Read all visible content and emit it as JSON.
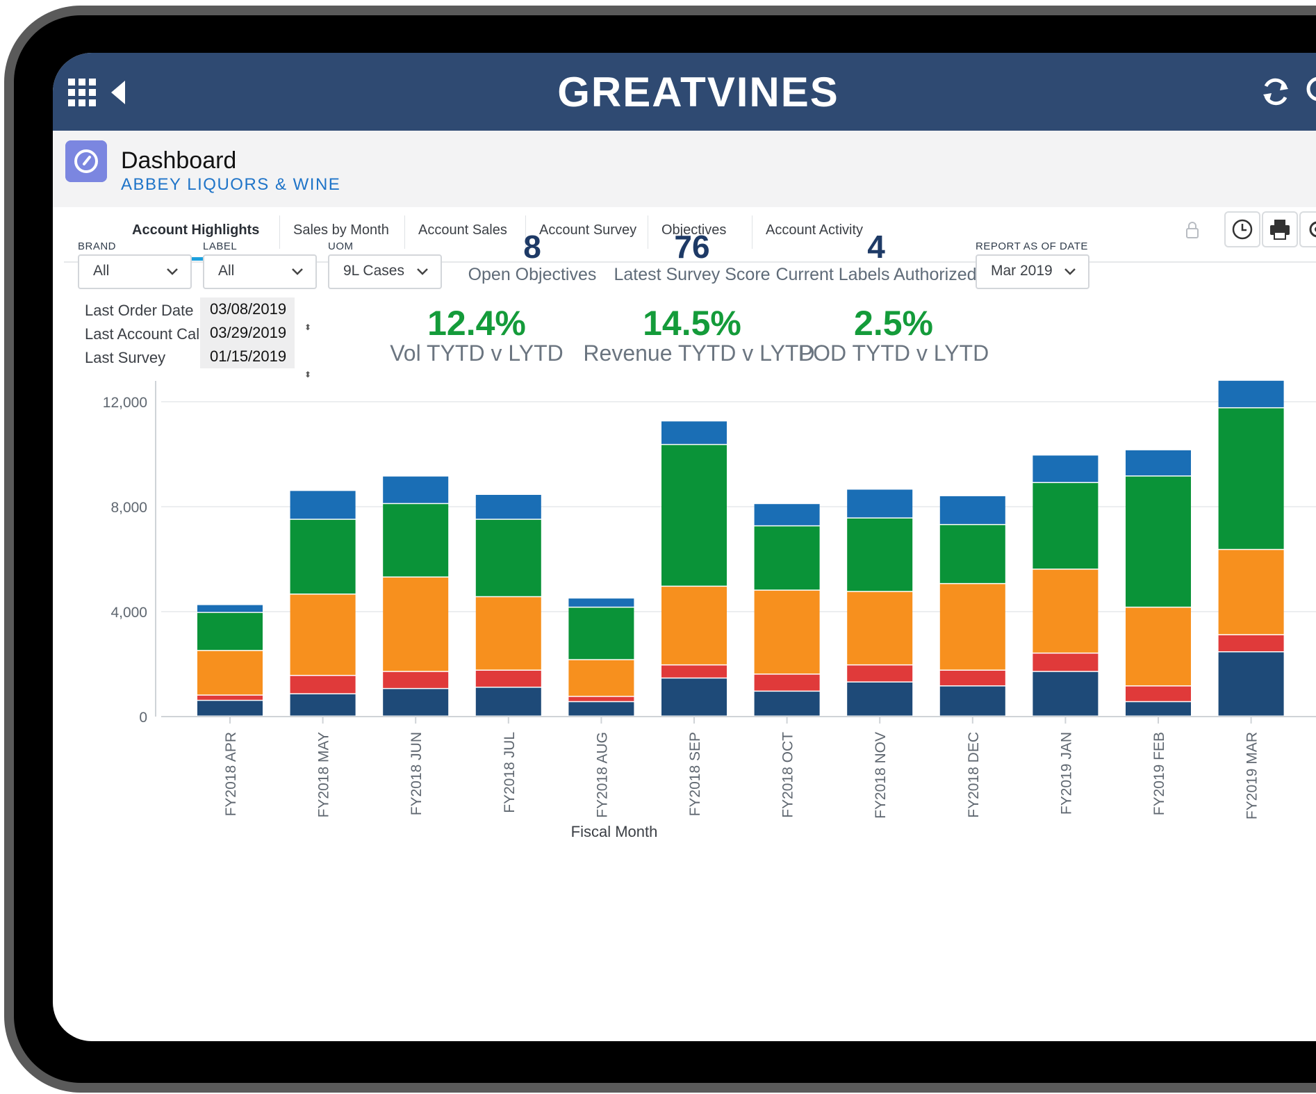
{
  "header": {
    "title": "GREATVINES"
  },
  "page": {
    "title": "Dashboard",
    "subtitle": "ABBEY LIQUORS & WINE"
  },
  "tabs": [
    "Account Highlights",
    "Sales by Month",
    "Account Sales",
    "Account Survey",
    "Objectives",
    "Account Activity"
  ],
  "filters": {
    "brand": {
      "label": "BRAND",
      "value": "All"
    },
    "label": {
      "label": "LABEL",
      "value": "All"
    },
    "uom": {
      "label": "UOM",
      "value": "9L Cases"
    },
    "report_date": {
      "label": "REPORT AS OF DATE",
      "value": "Mar 2019"
    }
  },
  "kpis": [
    {
      "value": "8",
      "label": "Open Objectives"
    },
    {
      "value": "76",
      "label": "Latest Survey Score"
    },
    {
      "value": "4",
      "label": "Current Labels Authorized"
    }
  ],
  "growth": [
    {
      "value": "12.4%",
      "label": "Vol TYTD v LYTD"
    },
    {
      "value": "14.5%",
      "label": "Revenue TYTD v LYTD"
    },
    {
      "value": "2.5%",
      "label": "POD TYTD v LYTD"
    }
  ],
  "info": [
    {
      "label": "Last Order Date",
      "value": "03/08/2019"
    },
    {
      "label": "Last Account Call",
      "value": "03/29/2019"
    },
    {
      "label": "Last Survey",
      "value": "01/15/2019"
    }
  ],
  "colors": {
    "header": "#2f4a72",
    "accent": "#1ca0dd",
    "kpi_green": "#149b3a",
    "kpi_navy": "#1e3a66"
  },
  "icons": [
    "app-grid-icon",
    "back-arrow-icon",
    "refresh-icon",
    "search-icon",
    "dashboard-gauge-icon",
    "lock-icon",
    "clock-icon",
    "print-icon",
    "gear-icon",
    "chevron-down-icon"
  ],
  "chart_data": {
    "type": "bar",
    "stacked": true,
    "xlabel": "Fiscal Month",
    "ylabel": "",
    "ylim": [
      0,
      12000
    ],
    "yticks": [
      0,
      4000,
      8000,
      12000
    ],
    "ytick_labels": [
      "0",
      "4,000",
      "8,000",
      "12,000"
    ],
    "categories": [
      "FY2018 APR",
      "FY2018 MAY",
      "FY2018 JUN",
      "FY2018 JUL",
      "FY2018 AUG",
      "FY2018 SEP",
      "FY2018 OCT",
      "FY2018 NOV",
      "FY2018 DEC",
      "FY2019 JAN",
      "FY2019 FEB",
      "FY2019 MAR"
    ],
    "grid": true,
    "series": [
      {
        "color": "#1e4a78",
        "values": [
          600,
          850,
          1050,
          1100,
          550,
          1450,
          950,
          1300,
          1150,
          1700,
          550,
          2450
        ]
      },
      {
        "color": "#e03a3a",
        "values": [
          200,
          700,
          650,
          650,
          200,
          500,
          650,
          650,
          600,
          700,
          600,
          650
        ]
      },
      {
        "color": "#f7901e",
        "values": [
          1700,
          3100,
          3600,
          2800,
          1400,
          3000,
          3200,
          2800,
          3300,
          3200,
          3000,
          3250
        ]
      },
      {
        "color": "#0a9338",
        "values": [
          1450,
          2850,
          2800,
          2950,
          2000,
          5400,
          2450,
          2800,
          2250,
          3300,
          5000,
          5400
        ]
      },
      {
        "color": "#1a6eb5",
        "values": [
          300,
          1100,
          1050,
          950,
          350,
          900,
          850,
          1100,
          1100,
          1050,
          1000,
          1050
        ]
      }
    ]
  }
}
